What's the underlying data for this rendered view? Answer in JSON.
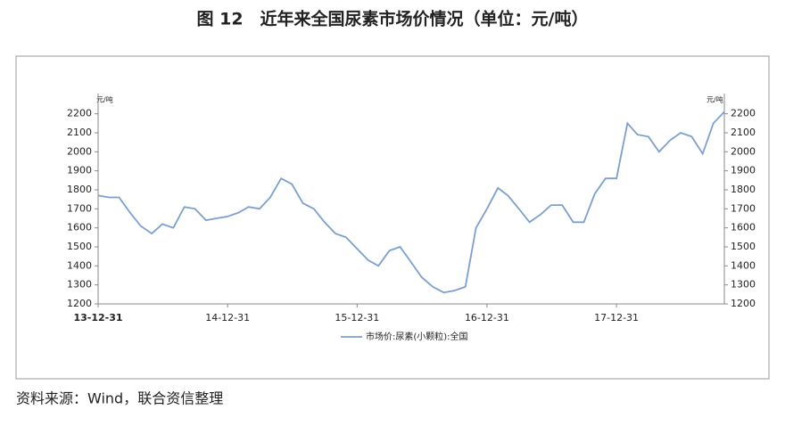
{
  "chart_data": {
    "type": "line",
    "title": "图 12　近年来全国尿素市场价情况（单位：元/吨）",
    "source": "资料来源：Wind，联合资信整理",
    "y_unit": "元/吨",
    "y2_unit": "元/吨",
    "x": [
      "13-12-31",
      "14-01-31",
      "14-02-28",
      "14-03-31",
      "14-04-30",
      "14-05-31",
      "14-06-30",
      "14-07-31",
      "14-08-31",
      "14-09-30",
      "14-10-31",
      "14-11-30",
      "14-12-31",
      "15-01-31",
      "15-02-28",
      "15-03-31",
      "15-04-30",
      "15-05-31",
      "15-06-30",
      "15-07-31",
      "15-08-31",
      "15-09-30",
      "15-10-31",
      "15-11-30",
      "15-12-31",
      "16-01-31",
      "16-02-29",
      "16-03-31",
      "16-04-30",
      "16-05-31",
      "16-06-30",
      "16-07-31",
      "16-08-31",
      "16-09-30",
      "16-10-31",
      "16-11-30",
      "16-12-31",
      "17-01-31",
      "17-02-28",
      "17-03-31",
      "17-04-30",
      "17-05-31",
      "17-06-30",
      "17-07-31",
      "17-08-31",
      "17-09-30",
      "17-10-31",
      "17-11-30",
      "17-12-31",
      "18-01-31",
      "18-02-28",
      "18-03-31",
      "18-04-30",
      "18-05-31",
      "18-06-30",
      "18-07-31",
      "18-08-31",
      "18-09-30",
      "18-10-31"
    ],
    "series": [
      {
        "name": "市场价:尿素(小颗粒):全国",
        "color": "#7b9fd0",
        "values": [
          1770,
          1760,
          1760,
          1680,
          1610,
          1570,
          1620,
          1600,
          1710,
          1700,
          1640,
          1650,
          1660,
          1680,
          1710,
          1700,
          1760,
          1860,
          1830,
          1730,
          1700,
          1630,
          1570,
          1550,
          1490,
          1430,
          1400,
          1480,
          1500,
          1420,
          1340,
          1290,
          1260,
          1270,
          1290,
          1600,
          1700,
          1810,
          1770,
          1700,
          1630,
          1670,
          1720,
          1720,
          1630,
          1630,
          1780,
          1860,
          1860,
          2150,
          2090,
          2080,
          2000,
          2060,
          2100,
          2080,
          1990,
          2150,
          2210
        ]
      }
    ],
    "xlim": [
      "13-12-31",
      "18-10-31"
    ],
    "xticks": [
      "13-12-31",
      "14-12-31",
      "15-12-31",
      "16-12-31",
      "17-12-31"
    ],
    "ylim": [
      1200,
      2250
    ],
    "yticks": [
      1200,
      1300,
      1400,
      1500,
      1600,
      1700,
      1800,
      1900,
      2000,
      2100,
      2200
    ],
    "y2lim": [
      1200,
      2250
    ],
    "y2ticks": [
      1200,
      1300,
      1400,
      1500,
      1600,
      1700,
      1800,
      1900,
      2000,
      2100,
      2200
    ]
  }
}
